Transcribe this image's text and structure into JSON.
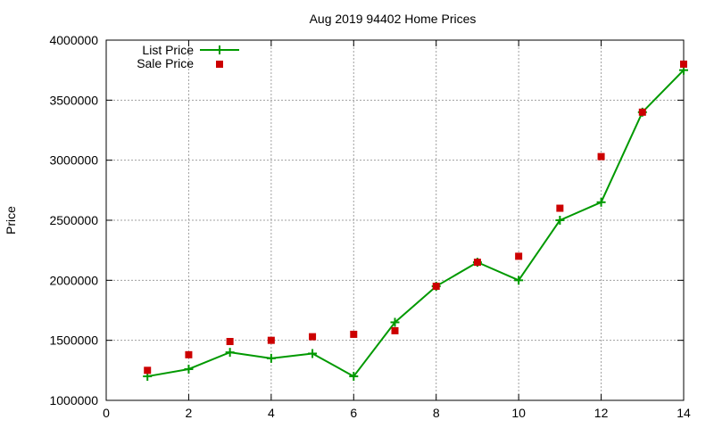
{
  "chart_data": {
    "type": "line",
    "title": "Aug 2019 94402 Home Prices",
    "xlabel": "",
    "ylabel": "Price",
    "xlim": [
      0,
      14
    ],
    "ylim": [
      1000000,
      4000000
    ],
    "x_ticks": [
      0,
      2,
      4,
      6,
      8,
      10,
      12,
      14
    ],
    "y_ticks": [
      1000000,
      1500000,
      2000000,
      2500000,
      3000000,
      3500000,
      4000000
    ],
    "x_tick_labels": [
      "0",
      "2",
      "4",
      "6",
      "8",
      "10",
      "12",
      "14"
    ],
    "y_tick_labels": [
      "1000000",
      "1500000",
      "2000000",
      "2500000",
      "3000000",
      "3500000",
      "4000000"
    ],
    "grid": true,
    "legend_position": "top-left",
    "series": [
      {
        "name": "List Price",
        "style": "line-with-plus-markers",
        "color": "#009900",
        "x": [
          1,
          2,
          3,
          4,
          5,
          6,
          7,
          8,
          9,
          10,
          11,
          12,
          13,
          14
        ],
        "y": [
          1200000,
          1260000,
          1400000,
          1350000,
          1390000,
          1200000,
          1650000,
          1950000,
          2150000,
          2000000,
          2500000,
          2650000,
          3400000,
          3750000
        ]
      },
      {
        "name": "Sale Price",
        "style": "square-markers",
        "color": "#cc0000",
        "x": [
          1,
          2,
          3,
          4,
          5,
          6,
          7,
          8,
          9,
          10,
          11,
          12,
          13,
          14
        ],
        "y": [
          1250000,
          1380000,
          1490000,
          1500000,
          1530000,
          1550000,
          1580000,
          1950000,
          2150000,
          2200000,
          2600000,
          3030000,
          3400000,
          3800000
        ]
      }
    ]
  }
}
